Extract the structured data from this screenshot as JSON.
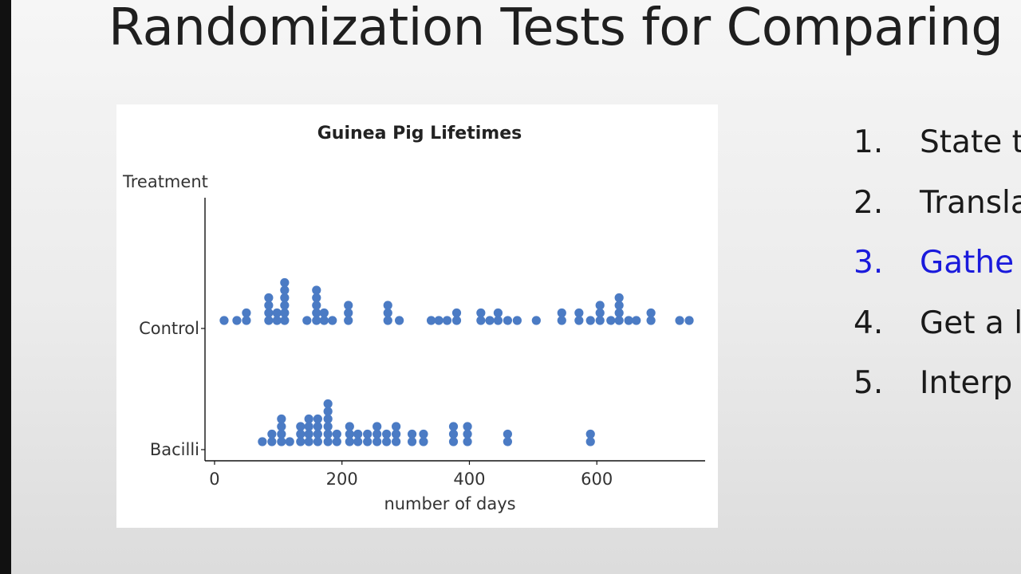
{
  "slide": {
    "title": "Randomization Tests for Comparing"
  },
  "steps": [
    {
      "number": "1.",
      "text": "State t",
      "active": false
    },
    {
      "number": "2.",
      "text": "Transla",
      "active": false
    },
    {
      "number": "3.",
      "text": "Gathe",
      "active": true
    },
    {
      "number": "4.",
      "text": "Get a l",
      "active": false
    },
    {
      "number": "5.",
      "text": "Interp",
      "active": false
    }
  ],
  "colors": {
    "dot": "#4b7bc4",
    "active_step": "#1a1adc",
    "axis": "#111111"
  },
  "chart_data": {
    "type": "scatter",
    "title": "Guinea Pig Lifetimes",
    "xlabel": "number of days",
    "ylabel": "Treatment",
    "x_ticks": [
      0,
      200,
      400,
      600
    ],
    "xlim": [
      -15,
      770
    ],
    "categories": [
      "Control",
      "Bacilli"
    ],
    "grid": false,
    "series": [
      {
        "name": "Control",
        "values": [
          [
            15,
            1
          ],
          [
            35,
            1
          ],
          [
            50,
            1
          ],
          [
            50,
            2
          ],
          [
            85,
            1
          ],
          [
            85,
            2
          ],
          [
            85,
            3
          ],
          [
            85,
            4
          ],
          [
            98,
            1
          ],
          [
            98,
            2
          ],
          [
            110,
            1
          ],
          [
            110,
            2
          ],
          [
            110,
            3
          ],
          [
            110,
            4
          ],
          [
            110,
            5
          ],
          [
            110,
            6
          ],
          [
            145,
            1
          ],
          [
            160,
            1
          ],
          [
            160,
            2
          ],
          [
            160,
            3
          ],
          [
            160,
            4
          ],
          [
            160,
            5
          ],
          [
            172,
            1
          ],
          [
            172,
            2
          ],
          [
            185,
            1
          ],
          [
            210,
            1
          ],
          [
            210,
            2
          ],
          [
            210,
            3
          ],
          [
            272,
            1
          ],
          [
            272,
            2
          ],
          [
            272,
            3
          ],
          [
            290,
            1
          ],
          [
            340,
            1
          ],
          [
            352,
            1
          ],
          [
            365,
            1
          ],
          [
            380,
            1
          ],
          [
            380,
            2
          ],
          [
            418,
            1
          ],
          [
            418,
            2
          ],
          [
            432,
            1
          ],
          [
            445,
            1
          ],
          [
            445,
            2
          ],
          [
            460,
            1
          ],
          [
            475,
            1
          ],
          [
            505,
            1
          ],
          [
            545,
            1
          ],
          [
            545,
            2
          ],
          [
            572,
            1
          ],
          [
            572,
            2
          ],
          [
            590,
            1
          ],
          [
            605,
            1
          ],
          [
            605,
            2
          ],
          [
            605,
            3
          ],
          [
            622,
            1
          ],
          [
            635,
            1
          ],
          [
            635,
            2
          ],
          [
            635,
            3
          ],
          [
            635,
            4
          ],
          [
            650,
            1
          ],
          [
            662,
            1
          ],
          [
            685,
            1
          ],
          [
            685,
            2
          ],
          [
            730,
            1
          ],
          [
            745,
            1
          ]
        ]
      },
      {
        "name": "Bacilli",
        "values": [
          [
            75,
            1
          ],
          [
            90,
            1
          ],
          [
            90,
            2
          ],
          [
            105,
            1
          ],
          [
            105,
            2
          ],
          [
            105,
            3
          ],
          [
            105,
            4
          ],
          [
            118,
            1
          ],
          [
            135,
            1
          ],
          [
            135,
            2
          ],
          [
            135,
            3
          ],
          [
            148,
            1
          ],
          [
            148,
            2
          ],
          [
            148,
            3
          ],
          [
            148,
            4
          ],
          [
            162,
            1
          ],
          [
            162,
            2
          ],
          [
            162,
            3
          ],
          [
            162,
            4
          ],
          [
            178,
            1
          ],
          [
            178,
            2
          ],
          [
            178,
            3
          ],
          [
            178,
            4
          ],
          [
            178,
            5
          ],
          [
            178,
            6
          ],
          [
            192,
            1
          ],
          [
            192,
            2
          ],
          [
            212,
            1
          ],
          [
            212,
            2
          ],
          [
            212,
            3
          ],
          [
            225,
            1
          ],
          [
            225,
            2
          ],
          [
            240,
            1
          ],
          [
            240,
            2
          ],
          [
            255,
            1
          ],
          [
            255,
            2
          ],
          [
            255,
            3
          ],
          [
            270,
            1
          ],
          [
            270,
            2
          ],
          [
            285,
            1
          ],
          [
            285,
            2
          ],
          [
            285,
            3
          ],
          [
            310,
            1
          ],
          [
            310,
            2
          ],
          [
            328,
            1
          ],
          [
            328,
            2
          ],
          [
            375,
            1
          ],
          [
            375,
            2
          ],
          [
            375,
            3
          ],
          [
            397,
            1
          ],
          [
            397,
            2
          ],
          [
            397,
            3
          ],
          [
            460,
            1
          ],
          [
            460,
            2
          ],
          [
            590,
            1
          ],
          [
            590,
            2
          ]
        ]
      }
    ]
  }
}
